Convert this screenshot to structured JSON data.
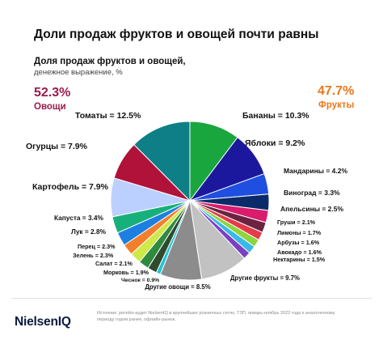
{
  "title": "Доли продаж фруктов и овощей почти равны",
  "subtitle": "Доля продаж фруктов и овощей,",
  "subtitle2": "денежное выражение, %",
  "groups": {
    "left": {
      "pct": "52.3%",
      "name": "Овощи"
    },
    "right": {
      "pct": "47.7%",
      "name": "Фрукты"
    }
  },
  "footer": {
    "logo": "NielsenIQ",
    "note": "Источник: ритейл-аудит NielsenIQ в крупнейших розничных сетях, ТЗП, январь-ноябрь 2022 года к аналогичному периоду годом ранее, офлайн-рынок."
  },
  "chart_data": {
    "type": "pie",
    "slices": [
      {
        "label": "Бананы = 10.3%",
        "value": 10.3,
        "color": "#1aa63f"
      },
      {
        "label": "Яблоки = 9.2%",
        "value": 9.2,
        "color": "#1b189e"
      },
      {
        "label": "Мандарины = 4.2%",
        "value": 4.2,
        "color": "#1f4fe0"
      },
      {
        "label": "Виноград = 3.3%",
        "value": 3.3,
        "color": "#0b2a6a"
      },
      {
        "label": "Апельсины = 2.5%",
        "value": 2.5,
        "color": "#d91c6e"
      },
      {
        "label": "Груши = 2.1%",
        "value": 2.1,
        "color": "#6b2440"
      },
      {
        "label": "Лимоны = 1.7%",
        "value": 1.7,
        "color": "#e63a4a"
      },
      {
        "label": "Арбузы = 1.6%",
        "value": 1.6,
        "color": "#8ed43d"
      },
      {
        "label": "Авокадо = 1.6%",
        "value": 1.6,
        "color": "#3ab8e8"
      },
      {
        "label": "Нектарины = 1.5%",
        "value": 1.5,
        "color": "#7b3ec4"
      },
      {
        "label": "Другие фрукты = 9.7%",
        "value": 9.7,
        "color": "#c2c2c2"
      },
      {
        "label": "Другие овощи = 8.5%",
        "value": 8.5,
        "color": "#8c8c8c"
      },
      {
        "label": "Чеснок = 0.9%",
        "value": 0.9,
        "color": "#22c5d6"
      },
      {
        "label": "Морковь = 1.9%",
        "value": 1.9,
        "color": "#2f4a2f"
      },
      {
        "label": "Салат = 2.1%",
        "value": 2.1,
        "color": "#2e8a3e"
      },
      {
        "label": "Зелень = 2.3%",
        "value": 2.3,
        "color": "#cfe84a"
      },
      {
        "label": "Перец = 2.3%",
        "value": 2.3,
        "color": "#f2802a"
      },
      {
        "label": "Лук = 2.8%",
        "value": 2.8,
        "color": "#1d7fe0"
      },
      {
        "label": "Капуста = 3.4%",
        "value": 3.4,
        "color": "#18b07a"
      },
      {
        "label": "Картофель = 7.9%",
        "value": 7.9,
        "color": "#bcd0ff"
      },
      {
        "label": "Огурцы = 7.9%",
        "value": 7.9,
        "color": "#b0123a"
      },
      {
        "label": "Томаты = 12.5%",
        "value": 12.5,
        "color": "#0e7f86"
      }
    ]
  }
}
